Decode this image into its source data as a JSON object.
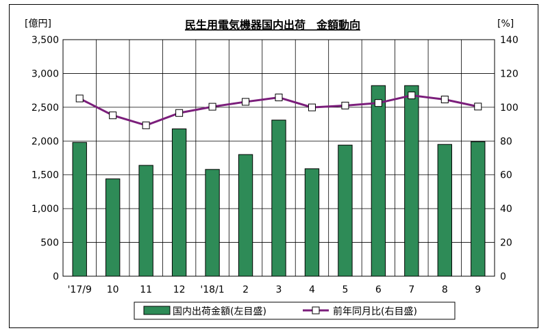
{
  "chart_data": {
    "type": "bar",
    "title": "民生用電気機器国内出荷　金額動向",
    "left_axis_unit": "[億円]",
    "right_axis_unit": "[%]",
    "categories": [
      "'17/9",
      "10",
      "11",
      "12",
      "'18/1",
      "2",
      "3",
      "4",
      "5",
      "6",
      "7",
      "8",
      "9"
    ],
    "ylim_left": [
      0,
      3500
    ],
    "ylim_right": [
      0,
      140
    ],
    "left_ticks": [
      "0",
      "500",
      "1,000",
      "1,500",
      "2,000",
      "2,500",
      "3,000",
      "3,500"
    ],
    "right_ticks": [
      "0",
      "20",
      "40",
      "60",
      "80",
      "100",
      "120",
      "140"
    ],
    "grid": true,
    "legend_position": "bottom",
    "series": [
      {
        "name": "国内出荷金額(左目盛)",
        "type": "bar",
        "axis": "left",
        "color": "#2E8B57",
        "values": [
          1980,
          1440,
          1640,
          2180,
          1580,
          1800,
          2310,
          1590,
          1940,
          2820,
          2820,
          1950,
          1990
        ]
      },
      {
        "name": "前年同月比(右目盛)",
        "type": "line",
        "axis": "right",
        "color": "#7B1E7B",
        "values": [
          105.2,
          95.2,
          89.3,
          96.6,
          100.3,
          103.2,
          105.8,
          99.9,
          101.0,
          102.5,
          107.0,
          104.6,
          100.4
        ]
      }
    ]
  }
}
